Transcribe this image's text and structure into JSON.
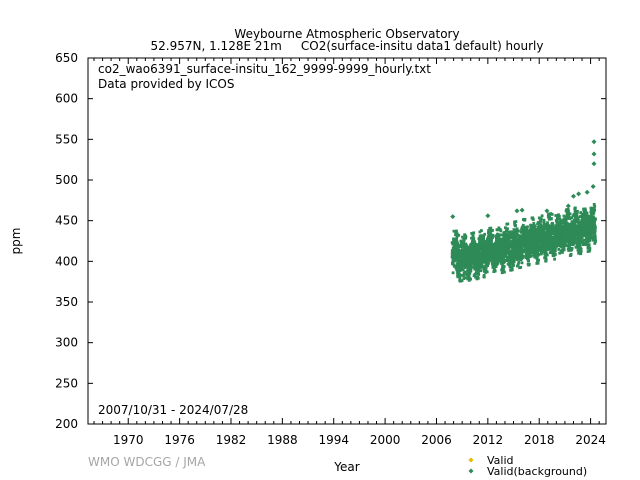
{
  "header": {
    "title_line1": "Weybourne Atmospheric Observatory",
    "title_line2": "52.957N, 1.128E 21m     CO2(surface-insitu data1 default) hourly"
  },
  "notes": {
    "filename": "co2_wao6391_surface-insitu_162_9999-9999_hourly.txt",
    "provider": "Data provided by ICOS",
    "period": "2007/10/31 - 2024/07/28"
  },
  "credit": "WMO WDCGG / JMA",
  "legend": {
    "valid_label": "Valid",
    "valid_color": "#e6b800",
    "background_label": "Valid(background)",
    "background_color": "#2e8b57"
  },
  "chart_data": {
    "type": "scatter",
    "xlabel": "Year",
    "ylabel": "ppm",
    "xlim": [
      1965.3,
      2025.8
    ],
    "ylim": [
      200,
      650
    ],
    "xticks": [
      "1970",
      "1976",
      "1982",
      "1988",
      "1994",
      "2000",
      "2006",
      "2012",
      "2018",
      "2024"
    ],
    "yticks": [
      "200",
      "250",
      "300",
      "350",
      "400",
      "450",
      "500",
      "550",
      "600",
      "650"
    ],
    "grid": false,
    "legend_position": "bottom-right",
    "series": [
      {
        "name": "Valid(background)",
        "color": "#2e8b57",
        "x_start": "2007/10/31",
        "x_end": "2024/07/28",
        "annual": [
          {
            "year": 2008,
            "low": 380,
            "high": 440
          },
          {
            "year": 2009,
            "low": 374,
            "high": 432
          },
          {
            "year": 2010,
            "low": 377,
            "high": 434
          },
          {
            "year": 2011,
            "low": 379,
            "high": 437
          },
          {
            "year": 2012,
            "low": 382,
            "high": 440
          },
          {
            "year": 2013,
            "low": 384,
            "high": 442
          },
          {
            "year": 2014,
            "low": 387,
            "high": 445
          },
          {
            "year": 2015,
            "low": 390,
            "high": 448
          },
          {
            "year": 2016,
            "low": 393,
            "high": 451
          },
          {
            "year": 2017,
            "low": 396,
            "high": 453
          },
          {
            "year": 2018,
            "low": 398,
            "high": 455
          },
          {
            "year": 2019,
            "low": 401,
            "high": 458
          },
          {
            "year": 2020,
            "low": 403,
            "high": 460
          },
          {
            "year": 2021,
            "low": 405,
            "high": 463
          },
          {
            "year": 2022,
            "low": 407,
            "high": 465
          },
          {
            "year": 2023,
            "low": 410,
            "high": 468
          },
          {
            "year": 2024,
            "low": 413,
            "high": 470
          }
        ],
        "outliers": [
          {
            "x": 2007.9,
            "y": 455
          },
          {
            "x": 2012.0,
            "y": 456
          },
          {
            "x": 2015.4,
            "y": 462
          },
          {
            "x": 2016.0,
            "y": 463
          },
          {
            "x": 2018.9,
            "y": 462
          },
          {
            "x": 2021.4,
            "y": 468
          },
          {
            "x": 2022.0,
            "y": 480
          },
          {
            "x": 2022.6,
            "y": 483
          },
          {
            "x": 2023.6,
            "y": 485
          },
          {
            "x": 2024.3,
            "y": 492
          },
          {
            "x": 2024.4,
            "y": 520
          },
          {
            "x": 2024.4,
            "y": 532
          },
          {
            "x": 2024.4,
            "y": 547
          }
        ]
      }
    ]
  }
}
